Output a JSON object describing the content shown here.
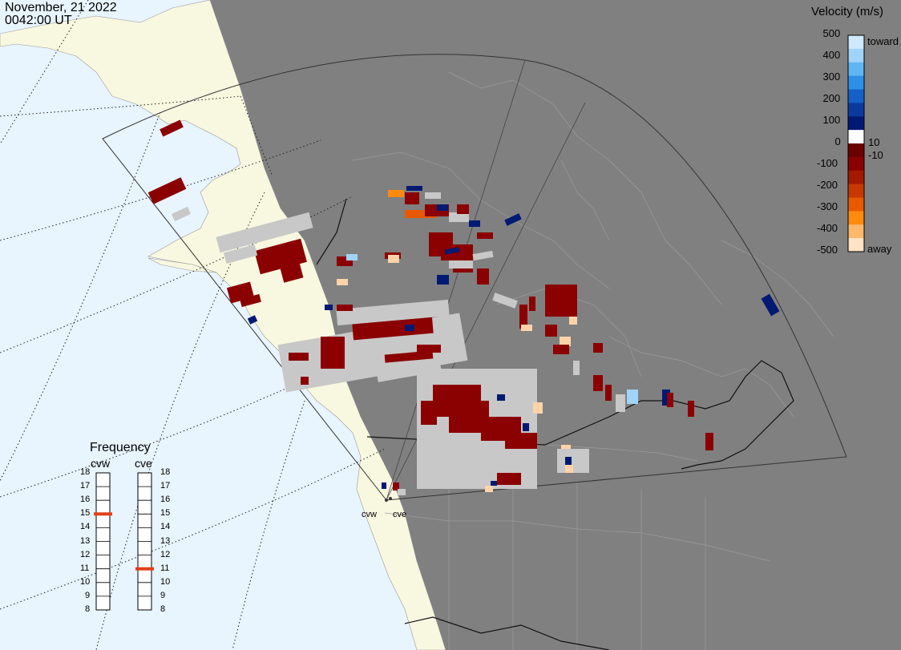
{
  "header": {
    "date": "November, 21 2022",
    "time": "0042:00 UT"
  },
  "colorbar": {
    "title": "Velocity (m/s)",
    "tick_labels": [
      "500",
      "400",
      "300",
      "200",
      "100",
      "10",
      "0",
      "-10",
      "-100",
      "-200",
      "-300",
      "-400",
      "-500"
    ],
    "toward_label": "toward",
    "away_label": "away",
    "ramp_colors": [
      "#cde9fb",
      "#9fd4f8",
      "#5fb6f3",
      "#2e8fe6",
      "#1460c8",
      "#0a3a9e",
      "#001a73",
      "#ffffff",
      "#6b0000",
      "#8b0000",
      "#a31a00",
      "#c83800",
      "#e85a00",
      "#ff8a10",
      "#ffb86a",
      "#ffe3c4"
    ]
  },
  "frequency": {
    "title": "Frequency",
    "radars": [
      {
        "name": "cvw",
        "freq_mhz": 15
      },
      {
        "name": "cve",
        "freq_mhz": 11
      }
    ],
    "ticks": [
      "18",
      "17",
      "16",
      "15",
      "14",
      "13",
      "12",
      "11",
      "10",
      "9",
      "8"
    ],
    "marker_color": "#e0401a"
  },
  "map": {
    "ocean_color": "#e8f4fe",
    "land_light_color": "#f8f8e0",
    "night_shade_color": "#808080",
    "gray_scatter_color": "#c8c8c8",
    "radar_labels": [
      "cvw",
      "cve"
    ]
  }
}
